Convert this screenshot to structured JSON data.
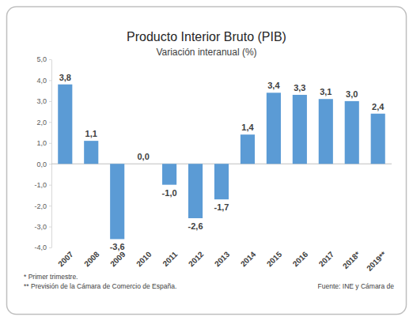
{
  "chart_data": {
    "type": "bar",
    "title": "Producto Interior Bruto (PIB)",
    "subtitle": "Variación interanual (%)",
    "categories": [
      "2007",
      "2008",
      "2009",
      "2010",
      "2011",
      "2012",
      "2013",
      "2014",
      "2015",
      "2016",
      "2017",
      "2018*",
      "2019**"
    ],
    "values": [
      3.8,
      1.1,
      -3.6,
      0.0,
      -1.0,
      -2.6,
      -1.7,
      1.4,
      3.4,
      3.3,
      3.1,
      3.0,
      2.4
    ],
    "value_labels": [
      "3,8",
      "1,1",
      "-3,6",
      "0,0",
      "-1,0",
      "-2,6",
      "-1,7",
      "1,4",
      "3,4",
      "3,3",
      "3,1",
      "3,0",
      "2,4"
    ],
    "color": "#5b9bd5",
    "data_labels": true,
    "grid": false,
    "ylim": [
      -4,
      5
    ],
    "yticks": [
      {
        "value": 5,
        "label": "5,0"
      },
      {
        "value": 4,
        "label": "4,0"
      },
      {
        "value": 3,
        "label": "3,0"
      },
      {
        "value": 2,
        "label": "2,0"
      },
      {
        "value": 1,
        "label": "1,0"
      },
      {
        "value": 0,
        "label": "0,0"
      },
      {
        "value": -1,
        "label": "-1,0"
      },
      {
        "value": -2,
        "label": "-2,0"
      },
      {
        "value": -3,
        "label": "-3,0"
      },
      {
        "value": -4,
        "label": "-4,0"
      }
    ],
    "notes": [
      "* Primer trimestre.",
      "** Previsión de la Cámara de Comercio de España."
    ],
    "source": "Fuente: INE y Cámara de"
  }
}
